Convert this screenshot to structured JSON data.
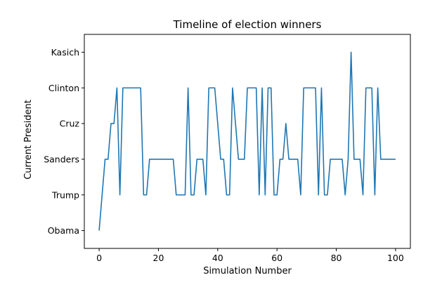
{
  "chart_data": {
    "type": "line",
    "title": "Timeline of election winners",
    "xlabel": "Simulation Number",
    "ylabel": "Current President",
    "categories": [
      "Obama",
      "Trump",
      "Sanders",
      "Cruz",
      "Clinton",
      "Kasich"
    ],
    "xlim": [
      -5,
      105
    ],
    "xticks": [
      0,
      20,
      40,
      60,
      80,
      100
    ],
    "grid": false,
    "line_color": "#1f77b4",
    "series": [
      {
        "x": [
          0,
          1,
          2,
          3,
          4,
          5,
          6,
          7,
          8,
          9,
          10,
          11,
          12,
          13,
          14,
          15,
          16,
          17,
          18,
          19,
          20,
          21,
          22,
          23,
          24,
          25,
          26,
          27,
          28,
          29,
          30,
          31,
          32,
          33,
          34,
          35,
          36,
          37,
          38,
          39,
          40,
          41,
          42,
          43,
          44,
          45,
          46,
          47,
          48,
          49,
          50,
          51,
          52,
          53,
          54,
          55,
          56,
          57,
          58,
          59,
          60,
          61,
          62,
          63,
          64,
          65,
          66,
          67,
          68,
          69,
          70,
          71,
          72,
          73,
          74,
          75,
          76,
          77,
          78,
          79,
          80,
          81,
          82,
          83,
          84,
          85,
          86,
          87,
          88,
          89,
          90,
          91,
          92,
          93,
          94,
          95,
          96,
          97,
          98,
          99,
          100
        ],
        "values": [
          "Obama",
          "Trump",
          "Sanders",
          "Sanders",
          "Cruz",
          "Cruz",
          "Clinton",
          "Trump",
          "Clinton",
          "Clinton",
          "Clinton",
          "Clinton",
          "Clinton",
          "Clinton",
          "Clinton",
          "Trump",
          "Trump",
          "Sanders",
          "Sanders",
          "Sanders",
          "Sanders",
          "Sanders",
          "Sanders",
          "Sanders",
          "Sanders",
          "Sanders",
          "Trump",
          "Trump",
          "Trump",
          "Trump",
          "Clinton",
          "Trump",
          "Trump",
          "Sanders",
          "Sanders",
          "Sanders",
          "Trump",
          "Clinton",
          "Clinton",
          "Clinton",
          "Cruz",
          "Sanders",
          "Sanders",
          "Trump",
          "Trump",
          "Clinton",
          "Cruz",
          "Sanders",
          "Sanders",
          "Sanders",
          "Clinton",
          "Clinton",
          "Clinton",
          "Clinton",
          "Trump",
          "Clinton",
          "Trump",
          "Clinton",
          "Clinton",
          "Trump",
          "Trump",
          "Sanders",
          "Sanders",
          "Cruz",
          "Sanders",
          "Sanders",
          "Sanders",
          "Sanders",
          "Trump",
          "Clinton",
          "Clinton",
          "Clinton",
          "Clinton",
          "Clinton",
          "Trump",
          "Clinton",
          "Trump",
          "Trump",
          "Sanders",
          "Sanders",
          "Sanders",
          "Sanders",
          "Sanders",
          "Trump",
          "Sanders",
          "Kasich",
          "Sanders",
          "Sanders",
          "Sanders",
          "Trump",
          "Clinton",
          "Clinton",
          "Clinton",
          "Trump",
          "Clinton",
          "Sanders",
          "Sanders",
          "Sanders",
          "Sanders",
          "Sanders",
          "Sanders"
        ]
      }
    ]
  }
}
